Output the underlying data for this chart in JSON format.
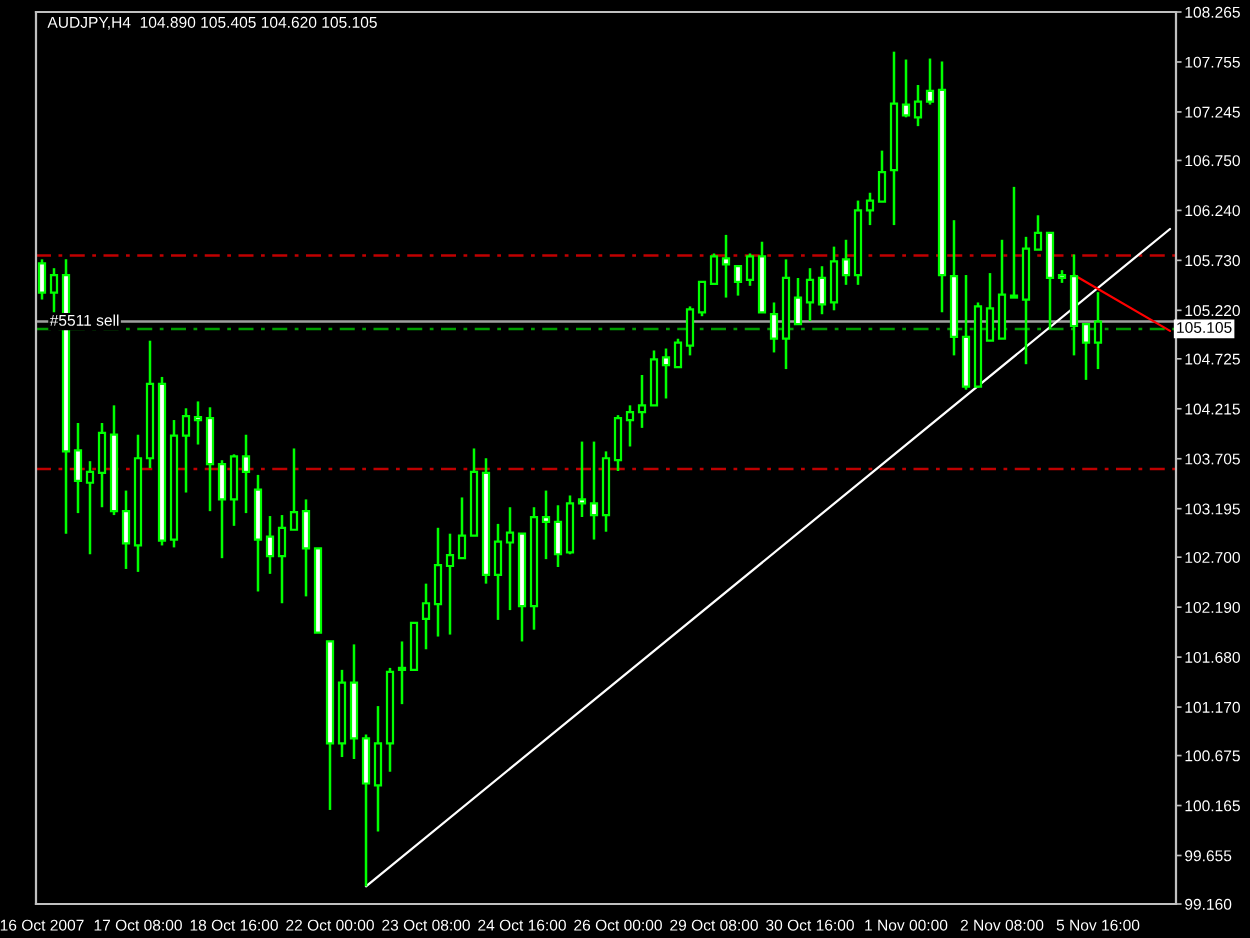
{
  "chart_data": {
    "type": "candlestick",
    "title": "AUDJPY,H4  104.890 105.405 104.620 105.105",
    "color": "#00ff00",
    "categories": [
      "16 Oct 2007",
      null,
      null,
      null,
      null,
      null,
      null,
      null,
      "17 Oct 08:00",
      null,
      null,
      null,
      null,
      null,
      null,
      null,
      "18 Oct 16:00",
      null,
      null,
      null,
      null,
      null,
      null,
      null,
      "22 Oct 00:00",
      null,
      null,
      null,
      null,
      null,
      null,
      null,
      "23 Oct 08:00",
      null,
      null,
      null,
      null,
      null,
      null,
      null,
      "24 Oct 16:00",
      null,
      null,
      null,
      null,
      null,
      null,
      null,
      "26 Oct 00:00",
      null,
      null,
      null,
      null,
      null,
      null,
      null,
      "29 Oct 08:00",
      null,
      null,
      null,
      null,
      null,
      null,
      null,
      "30 Oct 16:00",
      null,
      null,
      null,
      null,
      null,
      null,
      null,
      "1 Nov 00:00",
      null,
      null,
      null,
      null,
      null,
      null,
      null,
      "2 Nov 08:00",
      null,
      null,
      null,
      null,
      null,
      null,
      null,
      "5 Nov 16:00",
      null,
      null,
      null,
      null,
      null,
      null
    ],
    "ohlc": [
      [
        105.7,
        105.74,
        105.33,
        105.4
      ],
      [
        105.4,
        105.65,
        105.2,
        105.58
      ],
      [
        105.58,
        105.74,
        102.94,
        103.78
      ],
      [
        103.79,
        104.07,
        103.15,
        103.48
      ],
      [
        103.46,
        103.68,
        102.73,
        103.57
      ],
      [
        103.56,
        104.07,
        103.21,
        103.97
      ],
      [
        103.95,
        104.25,
        103.13,
        103.17
      ],
      [
        103.17,
        103.38,
        102.58,
        102.84
      ],
      [
        102.82,
        103.95,
        102.55,
        103.71
      ],
      [
        103.71,
        104.91,
        103.61,
        104.47
      ],
      [
        104.47,
        104.54,
        102.82,
        102.87
      ],
      [
        102.88,
        104.1,
        102.8,
        103.94
      ],
      [
        103.94,
        104.22,
        103.36,
        104.14
      ],
      [
        104.13,
        104.29,
        103.85,
        104.1
      ],
      [
        104.12,
        104.23,
        103.17,
        103.65
      ],
      [
        103.65,
        103.69,
        102.69,
        103.29
      ],
      [
        103.29,
        103.75,
        103.02,
        103.73
      ],
      [
        103.73,
        103.95,
        103.15,
        103.57
      ],
      [
        103.39,
        103.54,
        102.35,
        102.88
      ],
      [
        102.91,
        103.12,
        102.53,
        102.71
      ],
      [
        102.71,
        103.13,
        102.23,
        103.0
      ],
      [
        102.98,
        103.81,
        102.98,
        103.16
      ],
      [
        103.17,
        103.29,
        102.3,
        102.79
      ],
      [
        102.79,
        102.79,
        101.93,
        101.93
      ],
      [
        101.84,
        101.84,
        100.12,
        100.8
      ],
      [
        100.8,
        101.55,
        100.66,
        101.42
      ],
      [
        101.42,
        101.81,
        100.64,
        100.85
      ],
      [
        100.85,
        100.89,
        99.34,
        100.39
      ],
      [
        100.37,
        101.18,
        99.9,
        100.8
      ],
      [
        100.8,
        101.57,
        100.51,
        101.53
      ],
      [
        101.55,
        101.84,
        101.2,
        101.57
      ],
      [
        101.55,
        102.03,
        101.55,
        102.03
      ],
      [
        102.07,
        102.43,
        101.76,
        102.23
      ],
      [
        102.22,
        103.0,
        101.89,
        102.62
      ],
      [
        102.61,
        102.94,
        101.91,
        102.72
      ],
      [
        102.69,
        103.31,
        102.69,
        102.92
      ],
      [
        102.92,
        103.81,
        102.92,
        103.57
      ],
      [
        103.56,
        103.71,
        102.43,
        102.52
      ],
      [
        102.52,
        103.04,
        102.06,
        102.86
      ],
      [
        102.85,
        103.21,
        102.16,
        102.95
      ],
      [
        102.94,
        102.94,
        101.84,
        102.2
      ],
      [
        102.2,
        103.21,
        101.96,
        103.11
      ],
      [
        103.11,
        103.38,
        102.68,
        103.06
      ],
      [
        103.06,
        103.23,
        102.6,
        102.73
      ],
      [
        102.75,
        103.33,
        102.73,
        103.25
      ],
      [
        103.29,
        103.88,
        103.11,
        103.25
      ],
      [
        103.25,
        103.88,
        102.88,
        103.13
      ],
      [
        103.13,
        103.78,
        102.96,
        103.71
      ],
      [
        103.69,
        104.15,
        103.58,
        104.12
      ],
      [
        104.1,
        104.25,
        103.83,
        104.18
      ],
      [
        104.18,
        104.56,
        104.02,
        104.25
      ],
      [
        104.25,
        104.81,
        104.25,
        104.72
      ],
      [
        104.74,
        104.83,
        104.32,
        104.66
      ],
      [
        104.64,
        104.93,
        104.64,
        104.89
      ],
      [
        104.86,
        105.26,
        104.76,
        105.23
      ],
      [
        105.2,
        105.51,
        105.16,
        105.51
      ],
      [
        105.49,
        105.8,
        105.49,
        105.77
      ],
      [
        105.75,
        105.99,
        105.35,
        105.69
      ],
      [
        105.67,
        105.68,
        105.37,
        105.51
      ],
      [
        105.53,
        105.8,
        105.47,
        105.77
      ],
      [
        105.77,
        105.92,
        105.2,
        105.2
      ],
      [
        105.18,
        105.3,
        104.79,
        104.93
      ],
      [
        104.93,
        105.74,
        104.62,
        105.55
      ],
      [
        105.35,
        105.55,
        105.08,
        105.08
      ],
      [
        105.3,
        105.65,
        105.11,
        105.53
      ],
      [
        105.55,
        105.67,
        105.18,
        105.28
      ],
      [
        105.3,
        105.87,
        105.22,
        105.72
      ],
      [
        105.74,
        105.94,
        105.48,
        105.58
      ],
      [
        105.58,
        106.34,
        105.48,
        106.24
      ],
      [
        106.24,
        106.42,
        106.09,
        106.34
      ],
      [
        106.33,
        106.85,
        106.33,
        106.63
      ],
      [
        106.65,
        107.86,
        106.09,
        107.33
      ],
      [
        107.32,
        107.78,
        107.19,
        107.21
      ],
      [
        107.19,
        107.52,
        107.1,
        107.35
      ],
      [
        107.46,
        107.79,
        107.32,
        107.35
      ],
      [
        107.47,
        107.76,
        105.2,
        105.58
      ],
      [
        105.57,
        106.14,
        104.76,
        104.95
      ],
      [
        104.95,
        105.58,
        104.41,
        104.44
      ],
      [
        104.44,
        105.3,
        104.43,
        105.26
      ],
      [
        104.91,
        105.6,
        104.91,
        105.24
      ],
      [
        104.93,
        105.94,
        104.93,
        105.38
      ],
      [
        105.35,
        106.48,
        105.35,
        105.37
      ],
      [
        105.33,
        105.97,
        104.67,
        105.85
      ],
      [
        105.84,
        106.19,
        105.84,
        106.01
      ],
      [
        106.01,
        106.01,
        105.03,
        105.55
      ],
      [
        105.58,
        105.63,
        105.5,
        105.55
      ],
      [
        105.57,
        105.79,
        104.76,
        105.06
      ],
      [
        105.08,
        105.08,
        104.51,
        104.89
      ],
      [
        104.89,
        105.405,
        104.62,
        105.105
      ],
      null,
      null,
      null,
      null,
      null,
      null
    ],
    "series": [
      {
        "type": "line",
        "color": "#ffffff",
        "values": [
          null,
          null,
          null,
          null,
          null,
          null,
          null,
          null,
          null,
          null,
          null,
          null,
          null,
          null,
          null,
          null,
          null,
          null,
          null,
          null,
          null,
          null,
          null,
          null,
          null,
          null,
          null,
          99.34,
          null,
          null,
          null,
          null,
          null,
          null,
          null,
          null,
          null,
          null,
          null,
          null,
          null,
          null,
          null,
          null,
          null,
          null,
          null,
          null,
          null,
          null,
          null,
          null,
          null,
          null,
          null,
          null,
          null,
          null,
          null,
          null,
          null,
          null,
          null,
          null,
          null,
          null,
          null,
          null,
          null,
          null,
          null,
          null,
          null,
          null,
          null,
          null,
          null,
          null,
          null,
          null,
          null,
          null,
          null,
          null,
          null,
          null,
          null,
          null,
          null,
          null,
          null,
          null,
          null,
          null,
          106.05
        ]
      },
      {
        "type": "line",
        "color": "#ff0000",
        "values": [
          null,
          null,
          null,
          null,
          null,
          null,
          null,
          null,
          null,
          null,
          null,
          null,
          null,
          null,
          null,
          null,
          null,
          null,
          null,
          null,
          null,
          null,
          null,
          null,
          null,
          null,
          null,
          null,
          null,
          null,
          null,
          null,
          null,
          null,
          null,
          null,
          null,
          null,
          null,
          null,
          null,
          null,
          null,
          null,
          null,
          null,
          null,
          null,
          null,
          null,
          null,
          null,
          null,
          null,
          null,
          null,
          null,
          null,
          null,
          null,
          null,
          null,
          null,
          null,
          null,
          null,
          null,
          null,
          null,
          null,
          null,
          null,
          null,
          null,
          null,
          null,
          null,
          null,
          null,
          null,
          null,
          null,
          null,
          null,
          null,
          null,
          105.58,
          null,
          null,
          null,
          null,
          null,
          null,
          null,
          105.01
        ]
      }
    ],
    "ref_lines": [
      {
        "axis": "y",
        "value": 105.78,
        "color": "#c00000",
        "line_style": "dashed"
      },
      {
        "axis": "y",
        "value": 103.6,
        "color": "#c00000",
        "line_style": "dashed"
      },
      {
        "axis": "y",
        "value": 105.03,
        "label": "#5511 sell",
        "color": "#00a000",
        "line_style": "dashed"
      },
      {
        "axis": "y",
        "value": 105.105,
        "label": "105.105",
        "color": "#a0a0a0",
        "line_style": "solid"
      }
    ],
    "ylim": [
      99.16,
      108.265
    ],
    "yticks": [
      108.265,
      107.755,
      107.245,
      {
        "value": 106.75,
        "label": "106.750"
      },
      {
        "value": 106.24,
        "label": "106.240"
      },
      {
        "value": 105.73,
        "label": "105.730"
      },
      {
        "value": 105.22,
        "label": "105.220"
      },
      104.725,
      104.215,
      103.705,
      103.195,
      {
        "value": 102.7,
        "label": "102.700"
      },
      {
        "value": 102.19,
        "label": "102.190"
      },
      {
        "value": 101.68,
        "label": "101.680"
      },
      {
        "value": 101.17,
        "label": "101.170"
      },
      100.675,
      100.165,
      99.655,
      {
        "value": 99.16,
        "label": "99.160"
      }
    ],
    "grid": false,
    "legend": false
  }
}
